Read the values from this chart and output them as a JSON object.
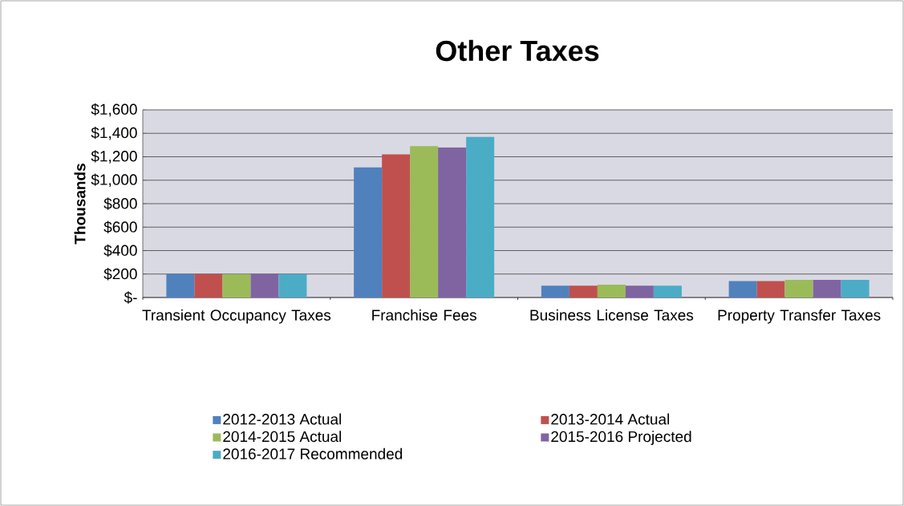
{
  "chart_data": {
    "type": "bar",
    "title": "Other Taxes",
    "ylabel": "Thousands",
    "categories": [
      "Transient Occupancy Taxes",
      "Franchise Fees",
      "Business License Taxes",
      "Property Transfer Taxes"
    ],
    "series": [
      {
        "name": "2012-2013 Actual",
        "color": "#4f81bd",
        "values": [
          200,
          1110,
          100,
          140
        ]
      },
      {
        "name": "2013-2014 Actual",
        "color": "#c0504d",
        "values": [
          200,
          1220,
          100,
          140
        ]
      },
      {
        "name": "2014-2015 Actual",
        "color": "#9bbb59",
        "values": [
          200,
          1290,
          110,
          150
        ]
      },
      {
        "name": "2015-2016 Projected",
        "color": "#8064a2",
        "values": [
          200,
          1280,
          100,
          150
        ]
      },
      {
        "name": "2016-2017 Recommended",
        "color": "#4bacc6",
        "values": [
          200,
          1370,
          100,
          150
        ]
      }
    ],
    "ylim": [
      0,
      1600
    ],
    "yticks": [
      {
        "value": 0,
        "label": "$-"
      },
      {
        "value": 200,
        "label": "$200"
      },
      {
        "value": 400,
        "label": "$400"
      },
      {
        "value": 600,
        "label": "$600"
      },
      {
        "value": 800,
        "label": "$800"
      },
      {
        "value": 1000,
        "label": "$1,000"
      },
      {
        "value": 1200,
        "label": "$1,200"
      },
      {
        "value": 1400,
        "label": "$1,400"
      },
      {
        "value": 1600,
        "label": "$1,600"
      }
    ],
    "grid": "y",
    "legend": "bottom"
  }
}
